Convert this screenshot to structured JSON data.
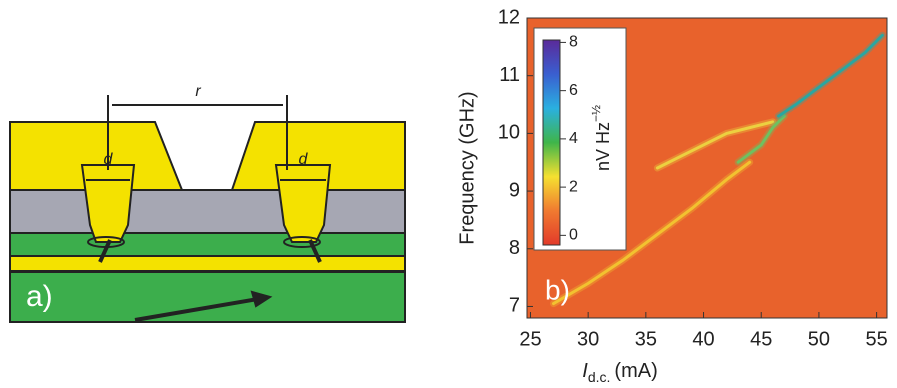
{
  "diagram": {
    "panel_label": "a)",
    "labels": [
      "r",
      "d",
      "d"
    ]
  },
  "chart_data": {
    "type": "line",
    "panel_label": "b)",
    "x_label": {
      "symbol": "I",
      "subscript": "d.c.",
      "unit": "(mA)"
    },
    "y_label": "Frequency (GHz)",
    "xlim": [
      24.7,
      55.9
    ],
    "xticks": [
      25,
      30,
      35,
      40,
      45,
      50,
      55
    ],
    "ylim": [
      6.8,
      12.0
    ],
    "yticks": [
      7,
      8,
      9,
      10,
      11,
      12
    ],
    "background": "#e8622c",
    "series": [
      {
        "color": "#f2c230",
        "x": [
          27,
          30,
          33,
          36,
          39,
          42,
          44
        ],
        "values": [
          7.05,
          7.4,
          7.8,
          8.25,
          8.7,
          9.2,
          9.5
        ]
      },
      {
        "color": "#ecd040",
        "x": [
          36,
          38,
          40,
          42,
          44,
          46
        ],
        "values": [
          9.4,
          9.6,
          9.8,
          10.0,
          10.1,
          10.2
        ]
      },
      {
        "color": "#6fc060",
        "x": [
          43,
          45,
          46,
          47
        ],
        "values": [
          9.5,
          9.8,
          10.1,
          10.3
        ]
      },
      {
        "color": "#2aa6a0",
        "x": [
          46.5,
          48,
          50,
          52,
          54,
          55.5
        ],
        "values": [
          10.3,
          10.5,
          10.8,
          11.1,
          11.4,
          11.7
        ]
      }
    ],
    "colorbar": {
      "lim": [
        -0.4,
        8.1
      ],
      "ticks": [
        0,
        2,
        4,
        6,
        8
      ],
      "colors": [
        "#e23a2a",
        "#f07a30",
        "#f5e030",
        "#3fb54a",
        "#2ab0e0",
        "#3a5fd0",
        "#5a2a9a"
      ],
      "label": {
        "text": "nV Hz",
        "superscript": "−½"
      }
    }
  }
}
